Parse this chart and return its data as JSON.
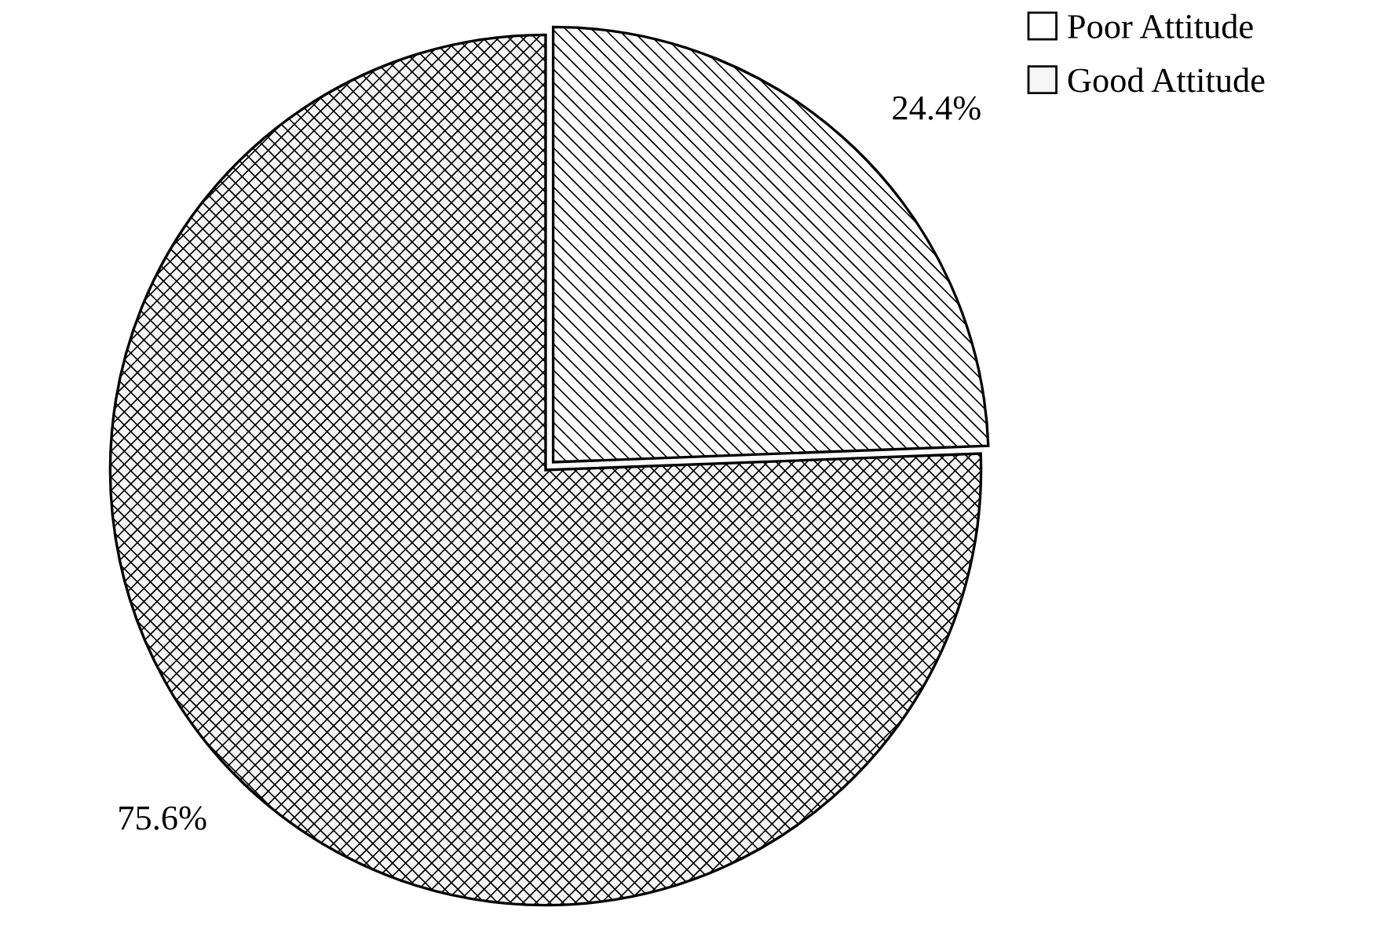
{
  "chart_data": {
    "type": "pie",
    "categories": [
      "Poor Attitude",
      "Good Attitude"
    ],
    "values": [
      24.4,
      75.6
    ],
    "colors": [
      "#ffffff",
      "#f5f5f5"
    ],
    "value_labels": [
      "24.4%",
      "75.6%"
    ],
    "legend": "top right"
  }
}
